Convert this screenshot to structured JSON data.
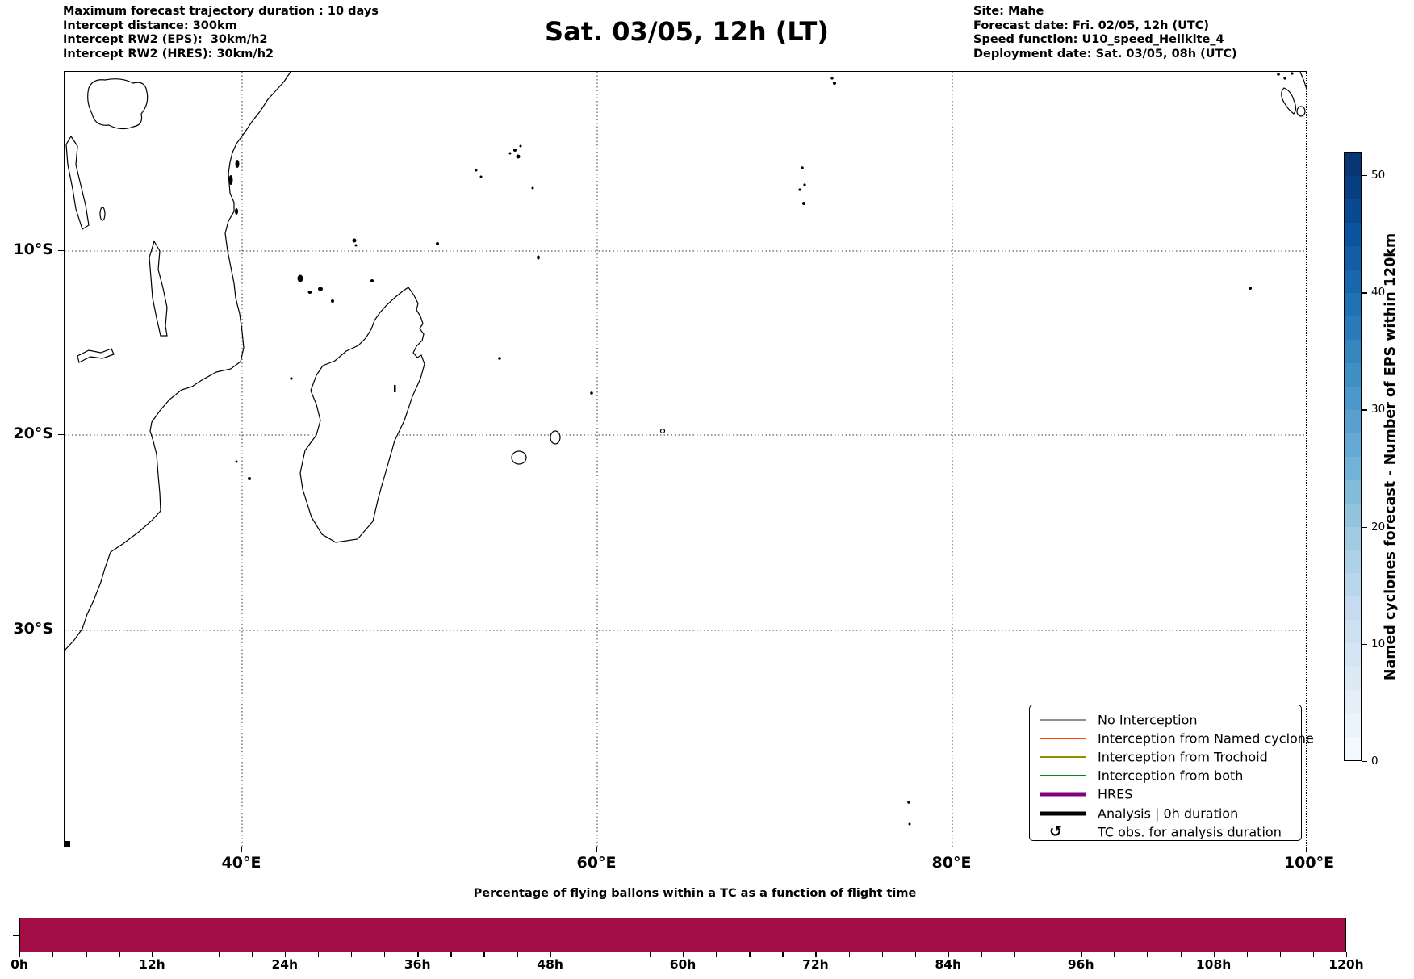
{
  "header_left": {
    "lines": [
      "Maximum forecast trajectory duration : 10 days",
      "Intercept distance: 300km",
      "Intercept RW2 (EPS):  30km/h2",
      "Intercept RW2 (HRES): 30km/h2"
    ]
  },
  "title": "Sat. 03/05, 12h (LT)",
  "header_right": {
    "lines": [
      "Site: Mahe",
      "Forecast date: Fri. 02/05, 12h (UTC)",
      "Speed function: U10_speed_Helikite_4",
      "Deployment date: Sat. 03/05, 08h (UTC)"
    ]
  },
  "map": {
    "lon_tick_labels": [
      "40°E",
      "60°E",
      "80°E",
      "100°E"
    ],
    "lat_tick_labels": [
      "10°S",
      "20°S",
      "30°S"
    ]
  },
  "legend": {
    "items": [
      {
        "label": "No Interception",
        "sample": "line",
        "color": "#909090",
        "width": 2
      },
      {
        "label": "Interception from Named cyclone",
        "sample": "line",
        "color": "#ff4500",
        "width": 2
      },
      {
        "label": "Interception from Trochoid",
        "sample": "line",
        "color": "#8f8f00",
        "width": 2
      },
      {
        "label": "Interception from both",
        "sample": "line",
        "color": "#0a8a0a",
        "width": 2
      },
      {
        "label": "HRES",
        "sample": "line",
        "color": "#800080",
        "width": 5
      },
      {
        "label": "Analysis | 0h duration",
        "sample": "line",
        "color": "#000000",
        "width": 5
      },
      {
        "label": "TC obs. for analysis duration",
        "sample": "glyph",
        "glyph": "↺",
        "color": "#000000"
      }
    ]
  },
  "colorbar": {
    "label": "Named cyclones forecast - Number of EPS within 120km",
    "vmin": 0,
    "vmax": 52,
    "n_steps": 26,
    "tick_values": [
      0,
      10,
      20,
      30,
      40,
      50
    ],
    "colormap_anchors": [
      "#f7fbff",
      "#deebf7",
      "#c6dbef",
      "#9ecae1",
      "#6baed6",
      "#4292c6",
      "#2171b5",
      "#08519c",
      "#08306b"
    ]
  },
  "flight_chart": {
    "title": "Percentage of flying ballons within a TC as a function of flight time",
    "bar_color": "#a30d45",
    "x_tick_labels": [
      "0h",
      "12h",
      "24h",
      "36h",
      "48h",
      "60h",
      "72h",
      "84h",
      "96h",
      "108h",
      "120h"
    ],
    "hours_max": 120,
    "minor_tick_step_hours": 3,
    "value_percent": 100
  },
  "chart_data": [
    {
      "type": "bar",
      "title": "Percentage of flying ballons within a TC as a function of flight time",
      "x": [
        0,
        12,
        24,
        36,
        48,
        60,
        72,
        84,
        96,
        108,
        120
      ],
      "x_tick_labels": [
        "0h",
        "12h",
        "24h",
        "36h",
        "48h",
        "60h",
        "72h",
        "84h",
        "96h",
        "108h",
        "120h"
      ],
      "series": [
        {
          "name": "Percentage of flying balloons within a TC",
          "values_percent": [
            100,
            100,
            100,
            100,
            100,
            100,
            100,
            100,
            100,
            100,
            100
          ]
        }
      ],
      "ylim": [
        0,
        100
      ],
      "bar_color": "#a30d45",
      "grid": false,
      "note": "single continuous bar at 100% spanning 0h to 120h"
    },
    {
      "type": "map",
      "title": "Sat. 03/05, 12h (LT)",
      "projection": "Mercator",
      "extent": {
        "lon_deg_east": [
          30,
          100
        ],
        "lat_deg": [
          -40,
          0
        ]
      },
      "lon_gridlines_deg_east": [
        40,
        60,
        80,
        100
      ],
      "lat_gridlines_deg": [
        -10,
        -20,
        -30
      ],
      "visible_features": [
        "East African coast",
        "Madagascar",
        "Comoros",
        "Seychelles",
        "Chagos",
        "Maldives (Addu)",
        "Reunion",
        "Mauritius",
        "Rodrigues",
        "Cocos Islands",
        "Sumatra (NW tip)",
        "St Paul & Amsterdam islands",
        "Lake Victoria",
        "Lake Tanganyika",
        "Lake Malawi"
      ],
      "trajectories_plotted": 0,
      "colorbar": {
        "label": "Named cyclones forecast - Number of EPS within 120km",
        "ticks": [
          0,
          10,
          20,
          30,
          40,
          50
        ],
        "range": [
          0,
          52
        ],
        "colormap": "Blues"
      }
    }
  ]
}
